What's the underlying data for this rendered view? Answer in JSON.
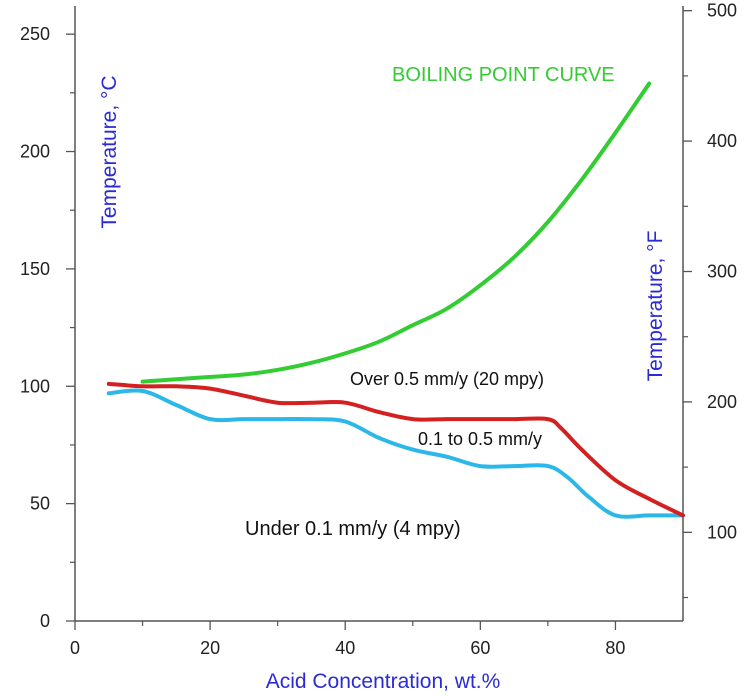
{
  "chart_data": {
    "type": "line",
    "xlabel": "Acid Concentration, wt.%",
    "ylabel": "Temperature, °C",
    "ylabel_right": "Temperature, °F",
    "xlim": [
      0,
      90
    ],
    "ylim": [
      0,
      262
    ],
    "ylim_right": [
      32,
      503.6
    ],
    "x_ticks": [
      0,
      20,
      40,
      60,
      80
    ],
    "x_minor_ticks": [
      10,
      30,
      50,
      70
    ],
    "y_ticks": [
      0,
      50,
      100,
      150,
      200,
      250
    ],
    "y_minor_ticks": [
      25,
      75,
      125,
      175,
      225
    ],
    "y_right_ticks": [
      100,
      200,
      300,
      400,
      500
    ],
    "y_right_minor_ticks": [
      50,
      150,
      250,
      350,
      450
    ],
    "grid": false,
    "colors": {
      "boiling": "#33cc33",
      "red": "#d42020",
      "cyan": "#2bb8e8",
      "axis_title": "#2b2bd6"
    },
    "series": [
      {
        "color": "#33cc33",
        "x": [
          10,
          15,
          20,
          25,
          30,
          35,
          40,
          45,
          50,
          55,
          60,
          65,
          70,
          75,
          80,
          85
        ],
        "y": [
          102,
          103,
          104,
          105,
          107,
          110,
          114,
          119,
          126,
          133,
          143,
          155,
          170,
          188,
          208,
          229
        ]
      },
      {
        "color": "#d42020",
        "x": [
          5,
          10,
          15,
          20,
          25,
          30,
          35,
          40,
          45,
          50,
          55,
          60,
          65,
          70,
          72,
          75,
          80,
          85,
          90
        ],
        "y": [
          101,
          100,
          100,
          99,
          96,
          93,
          93,
          93,
          89,
          86,
          86,
          86,
          86,
          86,
          82,
          73,
          60,
          52,
          45
        ]
      },
      {
        "color": "#2bb8e8",
        "x": [
          5,
          10,
          15,
          20,
          25,
          30,
          35,
          40,
          45,
          50,
          55,
          60,
          65,
          70,
          73,
          76,
          80,
          85,
          90
        ],
        "y": [
          97,
          98,
          92,
          86,
          86,
          86,
          86,
          85,
          78,
          73,
          70,
          66,
          66,
          66,
          61,
          53,
          45,
          45,
          45
        ]
      }
    ],
    "annotations": {
      "boiling": "BOILING POINT CURVE",
      "over": "Over 0.5 mm/y (20 mpy)",
      "mid": "0.1 to 0.5 mm/y",
      "under": "Under 0.1 mm/y (4 mpy)"
    }
  }
}
